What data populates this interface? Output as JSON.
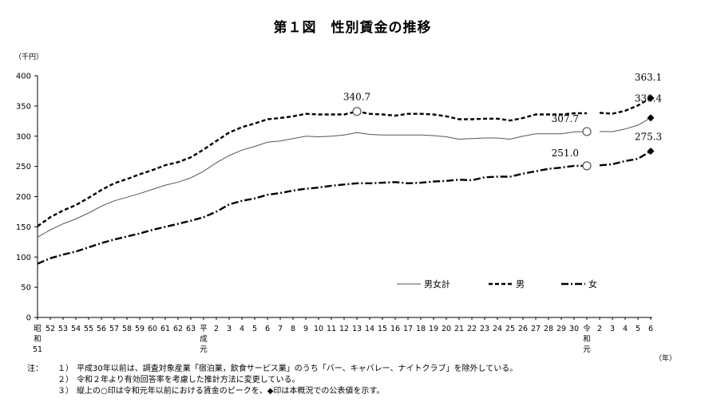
{
  "title": "第１図　性別賃金の推移",
  "unit_label": "（千円）",
  "x_unit_label": "（年）",
  "notes_label": "注：",
  "notes": [
    {
      "num": "１）",
      "text": "平成30年以前は、調査対象産業「宿泊業，飲食サービス業」のうち「バー、キャバレー、ナイトクラブ」を除外している。"
    },
    {
      "num": "２）",
      "text": "令和２年より有効回答率を考慮した推計方法に変更している。"
    },
    {
      "num": "３）",
      "text": "縦上の○印は令和元年以前における賃金のピークを、◆印は本概況での公表値を示す。"
    }
  ],
  "chart_data": {
    "type": "line",
    "ylim": [
      0,
      400
    ],
    "yticks": [
      0,
      50,
      100,
      150,
      200,
      250,
      300,
      350,
      400
    ],
    "grid": false,
    "legend_position": "bottom-right",
    "x": [
      "昭和51",
      "52",
      "53",
      "54",
      "55",
      "56",
      "57",
      "58",
      "59",
      "60",
      "61",
      "62",
      "63",
      "平成元",
      "2",
      "3",
      "4",
      "5",
      "6",
      "7",
      "8",
      "9",
      "10",
      "11",
      "12",
      "13",
      "14",
      "15",
      "16",
      "17",
      "18",
      "19",
      "20",
      "21",
      "22",
      "23",
      "24",
      "25",
      "26",
      "27",
      "28",
      "29",
      "30",
      "令和元",
      "2",
      "3",
      "4",
      "5",
      "6"
    ],
    "xtick_labels": [
      [
        "昭",
        "和",
        "51"
      ],
      [
        "52"
      ],
      [
        "53"
      ],
      [
        "54"
      ],
      [
        "55"
      ],
      [
        "56"
      ],
      [
        "57"
      ],
      [
        "58"
      ],
      [
        "59"
      ],
      [
        "60"
      ],
      [
        "61"
      ],
      [
        "62"
      ],
      [
        "63"
      ],
      [
        "平",
        "成",
        "元"
      ],
      [
        "2"
      ],
      [
        "3"
      ],
      [
        "4"
      ],
      [
        "5"
      ],
      [
        "6"
      ],
      [
        "7"
      ],
      [
        "8"
      ],
      [
        "9"
      ],
      [
        "10"
      ],
      [
        "11"
      ],
      [
        "12"
      ],
      [
        "13"
      ],
      [
        "14"
      ],
      [
        "15"
      ],
      [
        "16"
      ],
      [
        "17"
      ],
      [
        "18"
      ],
      [
        "19"
      ],
      [
        "20"
      ],
      [
        "21"
      ],
      [
        "22"
      ],
      [
        "23"
      ],
      [
        "24"
      ],
      [
        "25"
      ],
      [
        "26"
      ],
      [
        "27"
      ],
      [
        "28"
      ],
      [
        "29"
      ],
      [
        "30"
      ],
      [
        "令",
        "和",
        "元"
      ],
      [
        "2"
      ],
      [
        "3"
      ],
      [
        "4"
      ],
      [
        "5"
      ],
      [
        "6"
      ]
    ],
    "break_after_index": 43,
    "series": [
      {
        "name": "男女計",
        "style": "solid",
        "color": "#555555",
        "values": [
          133,
          145,
          155,
          163,
          173,
          184,
          193,
          199,
          205,
          212,
          219,
          224,
          231,
          242,
          256,
          268,
          277,
          283,
          290,
          292,
          296,
          300,
          299,
          300,
          302,
          306,
          303,
          302,
          302,
          302,
          302,
          301,
          299,
          295,
          296,
          297,
          297,
          295,
          300,
          304,
          304,
          304,
          307,
          307.7,
          307.7,
          307.4,
          311.8,
          318.3,
          330.4
        ],
        "annotations": [
          {
            "index": 43,
            "label": "307.7",
            "marker": "circle"
          },
          {
            "index": 48,
            "label": "330.4",
            "marker": "diamond"
          }
        ]
      },
      {
        "name": "男",
        "style": "dashed",
        "color": "#000000",
        "values": [
          151,
          166,
          177,
          186,
          198,
          211,
          222,
          229,
          237,
          244,
          252,
          257,
          265,
          278,
          292,
          306,
          315,
          321,
          328,
          330,
          333,
          337,
          336,
          336,
          336,
          341,
          337,
          336,
          334,
          337,
          337,
          336,
          333,
          328,
          328,
          329,
          329,
          326,
          330,
          336,
          336,
          336,
          338,
          338.0,
          338.8,
          337.2,
          342.0,
          350.9,
          363.1
        ],
        "annotations": [
          {
            "index": 25,
            "label": "340.7",
            "marker": "circle"
          },
          {
            "index": 48,
            "label": "363.1",
            "marker": "diamond"
          }
        ]
      },
      {
        "name": "女",
        "style": "dashdot",
        "color": "#000000",
        "values": [
          89,
          98,
          104,
          109,
          116,
          123,
          129,
          134,
          139,
          145,
          150,
          155,
          160,
          166,
          175,
          187,
          193,
          197,
          203,
          206,
          210,
          213,
          215,
          218,
          220,
          222,
          222,
          223,
          224,
          222,
          223,
          225,
          226,
          228,
          227,
          232,
          233,
          233,
          238,
          242,
          246,
          248,
          251,
          251.0,
          251.8,
          253.6,
          258.9,
          262.6,
          275.3
        ],
        "annotations": [
          {
            "index": 43,
            "label": "251.0",
            "marker": "circle"
          },
          {
            "index": 48,
            "label": "275.3",
            "marker": "diamond"
          }
        ]
      }
    ]
  }
}
